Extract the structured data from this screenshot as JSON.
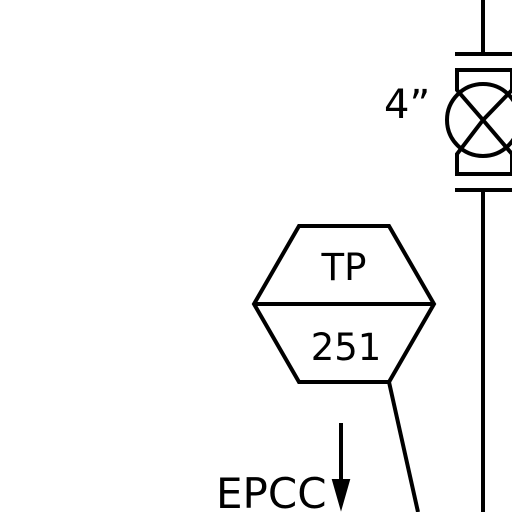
{
  "diagram": {
    "pipe_size_label": "4”",
    "instrument": {
      "function_label": "TP",
      "tag_number": "251"
    },
    "note_label": "EPCC",
    "colors": {
      "line": "#000000",
      "background": "#ffffff"
    },
    "icons": {
      "valve": "gate-valve-icon",
      "arrow": "arrow-down-icon"
    }
  }
}
